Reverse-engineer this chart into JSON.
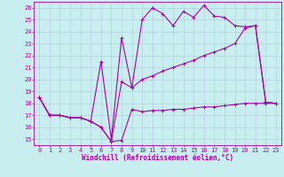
{
  "xlabel": "Windchill (Refroidissement éolien,°C)",
  "xlim": [
    -0.5,
    23.5
  ],
  "ylim": [
    14.5,
    26.5
  ],
  "x_ticks": [
    0,
    1,
    2,
    3,
    4,
    5,
    6,
    7,
    8,
    9,
    10,
    11,
    12,
    13,
    14,
    15,
    16,
    17,
    18,
    19,
    20,
    21,
    22,
    23
  ],
  "y_ticks": [
    15,
    16,
    17,
    18,
    19,
    20,
    21,
    22,
    23,
    24,
    25,
    26
  ],
  "bg_color": "#c8eef0",
  "grid_color": "#b0c8d8",
  "line_color": "#aa00aa",
  "series1_x": [
    0,
    1,
    2,
    3,
    4,
    5,
    6,
    7,
    8,
    9,
    10,
    11,
    12,
    13,
    14,
    15,
    16,
    17,
    18,
    19,
    20,
    21,
    22,
    23
  ],
  "series1_y": [
    18.5,
    17.0,
    17.0,
    16.8,
    16.8,
    16.5,
    16.0,
    14.8,
    14.9,
    17.5,
    17.3,
    17.4,
    17.4,
    17.5,
    17.5,
    17.6,
    17.7,
    17.7,
    17.8,
    17.9,
    18.0,
    18.0,
    18.0,
    18.0
  ],
  "series2_x": [
    0,
    1,
    2,
    3,
    4,
    5,
    6,
    7,
    8,
    9,
    10,
    11,
    12,
    13,
    14,
    15,
    16,
    17,
    18,
    19,
    20,
    21,
    22,
    23
  ],
  "series2_y": [
    18.5,
    17.0,
    17.0,
    16.8,
    16.8,
    16.5,
    16.0,
    14.8,
    19.8,
    19.3,
    20.0,
    20.3,
    20.7,
    21.0,
    21.3,
    21.6,
    22.0,
    22.3,
    22.6,
    23.0,
    24.3,
    24.5,
    18.1,
    18.0
  ],
  "series3_x": [
    0,
    1,
    2,
    3,
    4,
    5,
    6,
    7,
    8,
    9,
    10,
    11,
    12,
    13,
    14,
    15,
    16,
    17,
    18,
    19,
    20,
    21,
    22,
    23
  ],
  "series3_y": [
    18.5,
    17.0,
    17.0,
    16.8,
    16.8,
    16.5,
    21.5,
    15.0,
    23.5,
    19.3,
    25.0,
    26.0,
    25.5,
    24.5,
    25.7,
    25.2,
    26.2,
    25.3,
    25.2,
    24.5,
    24.4,
    24.5,
    18.1,
    18.0
  ],
  "marker_size": 2.5,
  "line_width": 0.8,
  "font_size": 5.5,
  "tick_font_size": 5.0
}
